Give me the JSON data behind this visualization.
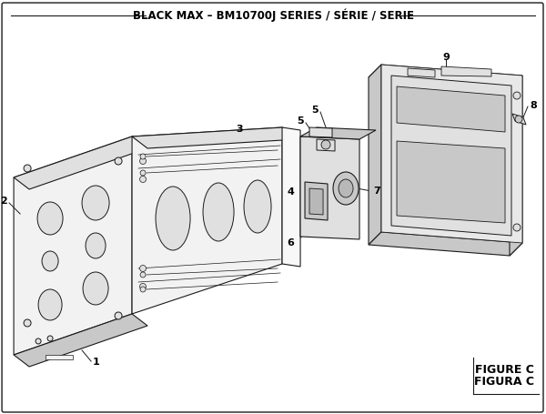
{
  "title": "BLACK MAX – BM10700J SERIES / SÉRIE / SERIE",
  "figure_label": "FIGURE C",
  "figura_label": "FIGURA C",
  "bg_color": "#ffffff",
  "line_color": "#1a1a1a",
  "text_color": "#000000",
  "fill_light": "#f2f2f2",
  "fill_mid": "#e0e0e0",
  "fill_dark": "#c8c8c8",
  "fill_darker": "#b8b8b8",
  "title_fontsize": 8.5,
  "label_fontsize": 8,
  "figure_label_fontsize": 9
}
